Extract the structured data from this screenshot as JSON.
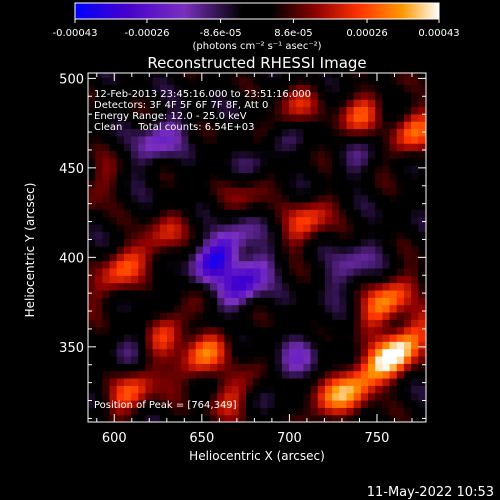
{
  "chart_data": {
    "type": "heatmap",
    "title": "Reconstructed RHESSI Image",
    "xlabel": "Heliocentric X (arcsec)",
    "ylabel": "Heliocentric Y (arcsec)",
    "xlim": [
      585,
      778
    ],
    "ylim": [
      308,
      503
    ],
    "x_ticks": [
      600,
      650,
      700,
      750
    ],
    "y_ticks": [
      350,
      400,
      450,
      500
    ],
    "colorbar": {
      "ticks": [
        "-0.00043",
        "-0.00026",
        "-8.6e-05",
        "8.6e-05",
        "0.00026",
        "0.00043"
      ],
      "values": [
        -0.00043,
        -0.00026,
        -8.6e-05,
        8.6e-05,
        0.00026,
        0.00043
      ],
      "range": [
        -0.00043,
        0.00043
      ],
      "units_label": "(photons cm⁻² s⁻¹ asec⁻²)",
      "colors": [
        "#0000ff",
        "#4400cc",
        "#7a2fbf",
        "#000000",
        "#8b0000",
        "#ff3300",
        "#ff9900",
        "#ffffff"
      ]
    },
    "annotations": [
      "12-Feb-2013 23:45:16.000 to 23:51:16.000",
      "Detectors: 3F 4F 5F 6F 7F 8F, Att 0",
      "Energy Range: 12.0 - 25.0 keV",
      "Clean     Total counts: 6.54E+03",
      "Position of Peak = [764,349]"
    ],
    "peak": {
      "x": 764,
      "y": 349
    },
    "features": [
      {
        "x": 660,
        "y": 402,
        "value": -0.00036
      },
      {
        "x": 675,
        "y": 387,
        "value": -0.00032
      },
      {
        "x": 625,
        "y": 465,
        "value": -0.0002
      },
      {
        "x": 690,
        "y": 460,
        "value": -0.00018
      },
      {
        "x": 735,
        "y": 395,
        "value": -0.00015
      },
      {
        "x": 700,
        "y": 340,
        "value": -0.00016
      },
      {
        "x": 615,
        "y": 352,
        "value": -0.00012
      },
      {
        "x": 740,
        "y": 455,
        "value": -0.0001
      },
      {
        "x": 764,
        "y": 349,
        "value": 0.00043
      },
      {
        "x": 755,
        "y": 375,
        "value": 0.00032
      },
      {
        "x": 770,
        "y": 470,
        "value": 0.00026
      },
      {
        "x": 740,
        "y": 480,
        "value": 0.00022
      },
      {
        "x": 700,
        "y": 480,
        "value": 0.0002
      },
      {
        "x": 710,
        "y": 420,
        "value": 0.00024
      },
      {
        "x": 650,
        "y": 345,
        "value": 0.00028
      },
      {
        "x": 630,
        "y": 360,
        "value": 0.00025
      },
      {
        "x": 600,
        "y": 390,
        "value": 0.00022
      },
      {
        "x": 610,
        "y": 325,
        "value": 0.00024
      },
      {
        "x": 670,
        "y": 325,
        "value": 0.0002
      },
      {
        "x": 720,
        "y": 320,
        "value": 0.00018
      },
      {
        "x": 625,
        "y": 410,
        "value": 0.00018
      },
      {
        "x": 680,
        "y": 440,
        "value": 0.00015
      },
      {
        "x": 590,
        "y": 440,
        "value": 0.00014
      },
      {
        "x": 740,
        "y": 330,
        "value": 0.0003
      }
    ]
  },
  "footer": {
    "timestamp": "11-May-2022 10:53"
  }
}
